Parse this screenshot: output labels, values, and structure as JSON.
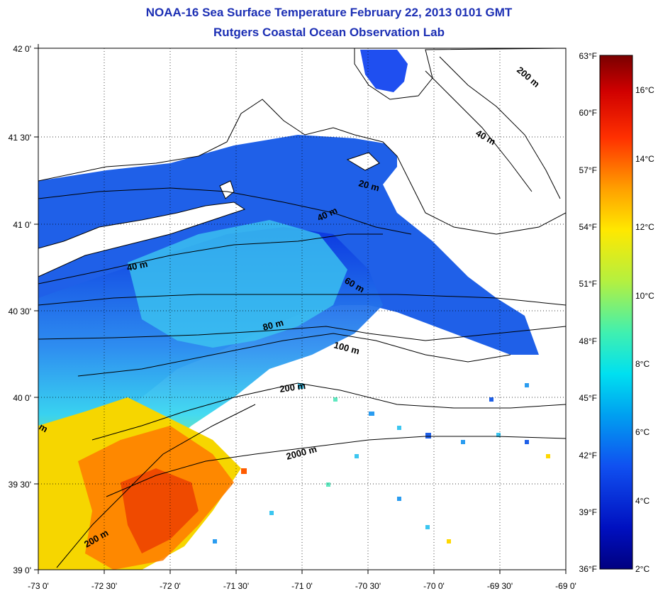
{
  "title": "NOAA-16 Sea Surface Temperature February 22, 2013 0101 GMT",
  "subtitle": "Rutgers Coastal Ocean Observation Lab",
  "lat_ticks": [
    "42 0'",
    "41 30'",
    "41 0'",
    "40 30'",
    "40 0'",
    "39 30'",
    "39 0'"
  ],
  "lon_ticks": [
    "-73 0'",
    "-72 30'",
    "-72 0'",
    "-71 30'",
    "-71 0'",
    "-70 30'",
    "-70 0'",
    "-69 30'",
    "-69 0'"
  ],
  "fahrenheit_ticks": [
    "63°F",
    "60°F",
    "57°F",
    "54°F",
    "51°F",
    "48°F",
    "45°F",
    "42°F",
    "39°F",
    "36°F"
  ],
  "celsius_ticks": [
    "16°C",
    "14°C",
    "12°C",
    "10°C",
    "8°C",
    "6°C",
    "4°C",
    "2°C"
  ],
  "contour_labels": [
    {
      "text": "20 m"
    },
    {
      "text": "40 m"
    },
    {
      "text": "40 m"
    },
    {
      "text": "40 m"
    },
    {
      "text": "60 m"
    },
    {
      "text": "80 m"
    },
    {
      "text": "100 m"
    },
    {
      "text": "200 m"
    },
    {
      "text": "200 m"
    },
    {
      "text": "200 m"
    },
    {
      "text": "2000 m"
    },
    {
      "text": "m"
    }
  ],
  "colors": {
    "title": "#1c2fb4",
    "colorbar": [
      "#7a0000",
      "#c80000",
      "#ff4000",
      "#ff9a00",
      "#ffe800",
      "#b4f040",
      "#40f0c0",
      "#00c8f0",
      "#2080f0",
      "#1030d0",
      "#000080"
    ]
  }
}
